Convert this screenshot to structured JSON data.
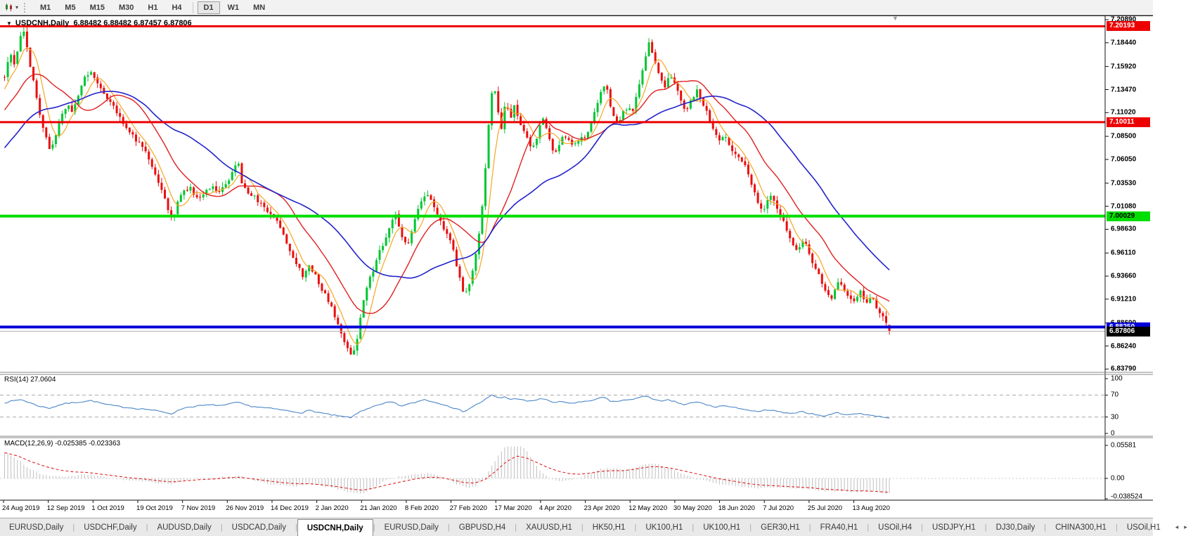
{
  "toolbar": {
    "chart_type_icon": "candlestick-chart-icon",
    "dropdown_icon": "chevron-down-icon",
    "timeframe_groups": [
      [
        "M1",
        "M5",
        "M15",
        "M30",
        "H1",
        "H4"
      ],
      [
        "D1",
        "W1",
        "MN"
      ]
    ],
    "active_timeframe": "D1"
  },
  "chart": {
    "collapse_icon": "collapse-triangle-icon",
    "title": "USDCNH,Daily",
    "ohlc_text": "6.88482 6.88482 6.87457 6.87806"
  },
  "rsi": {
    "label": "RSI(14)",
    "value": "27.0604"
  },
  "macd": {
    "label": "MACD(12,26,9)",
    "macd_value": "-0.025385",
    "signal_value": "-0.023363"
  },
  "tabs": {
    "scroll_left_icon": "◂",
    "scroll_right_icon": "▸",
    "items": [
      {
        "label": "EURUSD,Daily",
        "active": false
      },
      {
        "label": "USDCHF,Daily",
        "active": false
      },
      {
        "label": "AUDUSD,Daily",
        "active": false
      },
      {
        "label": "USDCAD,Daily",
        "active": false
      },
      {
        "label": "USDCNH,Daily",
        "active": true
      },
      {
        "label": "EURUSD,Daily",
        "active": false
      },
      {
        "label": "GBPUSD,H4",
        "active": false
      },
      {
        "label": "XAUUSD,H1",
        "active": false
      },
      {
        "label": "HK50,H1",
        "active": false
      },
      {
        "label": "UK100,H1",
        "active": false
      },
      {
        "label": "UK100,H1",
        "active": false
      },
      {
        "label": "GER30,H1",
        "active": false
      },
      {
        "label": "FRA40,H1",
        "active": false
      },
      {
        "label": "USOil,H4",
        "active": false
      },
      {
        "label": "USDJPY,H1",
        "active": false
      },
      {
        "label": "DJ30,Daily",
        "active": false
      },
      {
        "label": "CHINA300,H1",
        "active": false
      },
      {
        "label": "USOil,H1",
        "active": false
      }
    ]
  },
  "colors": {
    "bull": "#00c632",
    "bear": "#ea0e0e",
    "ma_fast": "#f5a623",
    "ma_mid": "#e02020",
    "ma_slow": "#2323cc",
    "resistance": "#ed0000",
    "support_green": "#00dd00",
    "support_blue": "#0000d8",
    "current_line": "#b3b3b3",
    "current_badge": "#000000",
    "rsi_line": "#4a86c8",
    "macd_hist": "#bfbfbf",
    "macd_signal": "#e02020"
  },
  "chart_data": {
    "type": "candlestick",
    "symbol": "USDCNH",
    "timeframe": "Daily",
    "last_candle": {
      "open": 6.88482,
      "high": 6.88482,
      "low": 6.87457,
      "close": 6.87806
    },
    "y_ticks": [
      "7.20890",
      "7.18440",
      "7.15920",
      "7.13470",
      "7.11020",
      "7.08500",
      "7.06050",
      "7.03530",
      "7.01080",
      "6.98630",
      "6.96110",
      "6.93660",
      "6.91210",
      "6.88690",
      "6.86240",
      "6.83790"
    ],
    "x_labels": [
      "24 Aug 2019",
      "12 Sep 2019",
      "1 Oct 2019",
      "19 Oct 2019",
      "7 Nov 2019",
      "26 Nov 2019",
      "14 Dec 2019",
      "2 Jan 2020",
      "21 Jan 2020",
      "8 Feb 2020",
      "27 Feb 2020",
      "17 Mar 2020",
      "4 Apr 2020",
      "23 Apr 2020",
      "12 May 2020",
      "30 May 2020",
      "18 Jun 2020",
      "7 Jul 2020",
      "25 Jul 2020",
      "13 Aug 2020"
    ],
    "levels": [
      {
        "value": 7.20193,
        "label": "7.20193",
        "role": "resistance",
        "color": "resistance",
        "text": "#ffffff",
        "width": 3
      },
      {
        "value": 7.10011,
        "label": "7.10011",
        "role": "resistance",
        "color": "resistance",
        "text": "#ffffff",
        "width": 3
      },
      {
        "value": 7.00029,
        "label": "7.00029",
        "role": "support",
        "color": "support_green",
        "text": "#000000",
        "width": 4
      },
      {
        "value": 6.8825,
        "label": "6.88250",
        "role": "support",
        "color": "support_blue",
        "text": "#ffffff",
        "width": 4
      },
      {
        "value": 6.87806,
        "label": "6.87806",
        "role": "current-price",
        "color": "current_badge",
        "text": "#ffffff",
        "width": 1
      }
    ],
    "price_path": [
      [
        5,
        7.148
      ],
      [
        12,
        7.175
      ],
      [
        20,
        7.16
      ],
      [
        28,
        7.192
      ],
      [
        34,
        7.196
      ],
      [
        40,
        7.165
      ],
      [
        48,
        7.138
      ],
      [
        55,
        7.108
      ],
      [
        62,
        7.09
      ],
      [
        70,
        7.068
      ],
      [
        78,
        7.088
      ],
      [
        86,
        7.106
      ],
      [
        95,
        7.12
      ],
      [
        102,
        7.108
      ],
      [
        112,
        7.135
      ],
      [
        120,
        7.148
      ],
      [
        130,
        7.152
      ],
      [
        138,
        7.14
      ],
      [
        148,
        7.128
      ],
      [
        158,
        7.12
      ],
      [
        166,
        7.108
      ],
      [
        175,
        7.098
      ],
      [
        185,
        7.088
      ],
      [
        195,
        7.078
      ],
      [
        205,
        7.072
      ],
      [
        215,
        7.052
      ],
      [
        228,
        7.03
      ],
      [
        238,
        7.005
      ],
      [
        244,
        6.996
      ],
      [
        252,
        7.018
      ],
      [
        260,
        7.028
      ],
      [
        270,
        7.03
      ],
      [
        280,
        7.018
      ],
      [
        290,
        7.026
      ],
      [
        300,
        7.034
      ],
      [
        310,
        7.026
      ],
      [
        320,
        7.034
      ],
      [
        330,
        7.048
      ],
      [
        336,
        7.062
      ],
      [
        342,
        7.036
      ],
      [
        352,
        7.026
      ],
      [
        362,
        7.02
      ],
      [
        372,
        7.01
      ],
      [
        382,
        7.002
      ],
      [
        392,
        6.996
      ],
      [
        402,
        6.98
      ],
      [
        412,
        6.962
      ],
      [
        422,
        6.948
      ],
      [
        430,
        6.936
      ],
      [
        438,
        6.946
      ],
      [
        446,
        6.94
      ],
      [
        455,
        6.924
      ],
      [
        465,
        6.912
      ],
      [
        475,
        6.894
      ],
      [
        485,
        6.872
      ],
      [
        494,
        6.856
      ],
      [
        500,
        6.85
      ],
      [
        506,
        6.868
      ],
      [
        512,
        6.896
      ],
      [
        518,
        6.922
      ],
      [
        526,
        6.936
      ],
      [
        536,
        6.958
      ],
      [
        546,
        6.976
      ],
      [
        556,
        6.996
      ],
      [
        562,
        7.004
      ],
      [
        570,
        6.978
      ],
      [
        578,
        6.968
      ],
      [
        586,
        6.99
      ],
      [
        596,
        7.012
      ],
      [
        604,
        7.026
      ],
      [
        612,
        7.016
      ],
      [
        622,
        6.998
      ],
      [
        632,
        6.985
      ],
      [
        642,
        6.97
      ],
      [
        650,
        6.942
      ],
      [
        658,
        6.916
      ],
      [
        666,
        6.928
      ],
      [
        674,
        6.952
      ],
      [
        682,
        6.99
      ],
      [
        688,
        7.04
      ],
      [
        694,
        7.1
      ],
      [
        700,
        7.148
      ],
      [
        706,
        7.118
      ],
      [
        712,
        7.092
      ],
      [
        718,
        7.124
      ],
      [
        724,
        7.102
      ],
      [
        730,
        7.116
      ],
      [
        738,
        7.098
      ],
      [
        746,
        7.088
      ],
      [
        754,
        7.072
      ],
      [
        762,
        7.084
      ],
      [
        770,
        7.106
      ],
      [
        778,
        7.088
      ],
      [
        786,
        7.066
      ],
      [
        794,
        7.078
      ],
      [
        802,
        7.086
      ],
      [
        812,
        7.074
      ],
      [
        822,
        7.08
      ],
      [
        832,
        7.086
      ],
      [
        842,
        7.104
      ],
      [
        852,
        7.13
      ],
      [
        860,
        7.142
      ],
      [
        868,
        7.112
      ],
      [
        878,
        7.096
      ],
      [
        888,
        7.116
      ],
      [
        898,
        7.112
      ],
      [
        906,
        7.134
      ],
      [
        914,
        7.158
      ],
      [
        921,
        7.188
      ],
      [
        928,
        7.17
      ],
      [
        936,
        7.15
      ],
      [
        944,
        7.136
      ],
      [
        951,
        7.15
      ],
      [
        958,
        7.14
      ],
      [
        966,
        7.126
      ],
      [
        974,
        7.112
      ],
      [
        982,
        7.124
      ],
      [
        990,
        7.134
      ],
      [
        998,
        7.12
      ],
      [
        1006,
        7.106
      ],
      [
        1014,
        7.092
      ],
      [
        1022,
        7.08
      ],
      [
        1030,
        7.088
      ],
      [
        1038,
        7.072
      ],
      [
        1046,
        7.066
      ],
      [
        1054,
        7.06
      ],
      [
        1062,
        7.046
      ],
      [
        1070,
        7.028
      ],
      [
        1078,
        7.012
      ],
      [
        1086,
        7.008
      ],
      [
        1094,
        7.022
      ],
      [
        1102,
        7.012
      ],
      [
        1110,
        6.998
      ],
      [
        1118,
        6.986
      ],
      [
        1126,
        6.972
      ],
      [
        1134,
        6.962
      ],
      [
        1142,
        6.976
      ],
      [
        1150,
        6.958
      ],
      [
        1158,
        6.946
      ],
      [
        1166,
        6.934
      ],
      [
        1174,
        6.916
      ],
      [
        1182,
        6.912
      ],
      [
        1190,
        6.93
      ],
      [
        1198,
        6.924
      ],
      [
        1206,
        6.916
      ],
      [
        1214,
        6.908
      ],
      [
        1222,
        6.92
      ],
      [
        1230,
        6.908
      ],
      [
        1238,
        6.916
      ],
      [
        1246,
        6.902
      ],
      [
        1254,
        6.894
      ],
      [
        1261,
        6.886
      ],
      [
        1265,
        6.878
      ]
    ],
    "rsi_axis": [
      "100",
      "70",
      "30",
      "0"
    ],
    "rsi_guides": [
      70,
      30
    ],
    "rsi_path": [
      [
        5,
        56
      ],
      [
        30,
        62
      ],
      [
        55,
        50
      ],
      [
        70,
        46
      ],
      [
        90,
        54
      ],
      [
        110,
        57
      ],
      [
        130,
        60
      ],
      [
        150,
        53
      ],
      [
        170,
        49
      ],
      [
        190,
        46
      ],
      [
        210,
        44
      ],
      [
        228,
        40
      ],
      [
        244,
        36
      ],
      [
        262,
        47
      ],
      [
        280,
        50
      ],
      [
        300,
        52
      ],
      [
        320,
        51
      ],
      [
        336,
        57
      ],
      [
        355,
        50
      ],
      [
        375,
        47
      ],
      [
        395,
        44
      ],
      [
        415,
        40
      ],
      [
        430,
        38
      ],
      [
        440,
        42
      ],
      [
        455,
        38
      ],
      [
        470,
        34
      ],
      [
        485,
        31
      ],
      [
        500,
        29
      ],
      [
        512,
        40
      ],
      [
        526,
        47
      ],
      [
        540,
        52
      ],
      [
        556,
        58
      ],
      [
        570,
        50
      ],
      [
        586,
        55
      ],
      [
        604,
        62
      ],
      [
        620,
        56
      ],
      [
        635,
        52
      ],
      [
        650,
        44
      ],
      [
        660,
        40
      ],
      [
        674,
        50
      ],
      [
        688,
        60
      ],
      [
        700,
        70
      ],
      [
        710,
        64
      ],
      [
        718,
        67
      ],
      [
        726,
        62
      ],
      [
        738,
        64
      ],
      [
        750,
        58
      ],
      [
        762,
        61
      ],
      [
        775,
        64
      ],
      [
        786,
        56
      ],
      [
        800,
        58
      ],
      [
        812,
        55
      ],
      [
        824,
        57
      ],
      [
        836,
        58
      ],
      [
        852,
        64
      ],
      [
        860,
        66
      ],
      [
        870,
        58
      ],
      [
        882,
        59
      ],
      [
        894,
        62
      ],
      [
        906,
        64
      ],
      [
        921,
        69
      ],
      [
        930,
        62
      ],
      [
        940,
        58
      ],
      [
        951,
        61
      ],
      [
        962,
        57
      ],
      [
        974,
        52
      ],
      [
        984,
        56
      ],
      [
        994,
        57
      ],
      [
        1006,
        52
      ],
      [
        1016,
        48
      ],
      [
        1030,
        51
      ],
      [
        1042,
        47
      ],
      [
        1054,
        46
      ],
      [
        1066,
        42
      ],
      [
        1078,
        39
      ],
      [
        1090,
        43
      ],
      [
        1102,
        41
      ],
      [
        1114,
        38
      ],
      [
        1126,
        35
      ],
      [
        1138,
        41
      ],
      [
        1150,
        37
      ],
      [
        1162,
        34
      ],
      [
        1174,
        31
      ],
      [
        1186,
        38
      ],
      [
        1198,
        36
      ],
      [
        1210,
        34
      ],
      [
        1222,
        37
      ],
      [
        1234,
        34
      ],
      [
        1246,
        32
      ],
      [
        1256,
        30
      ],
      [
        1265,
        27
      ]
    ],
    "macd_axis": [
      "0.05581",
      "0.00",
      "-0.038524"
    ],
    "macd_signal_path": [
      [
        5,
        0.044
      ],
      [
        25,
        0.038
      ],
      [
        45,
        0.028
      ],
      [
        65,
        0.02
      ],
      [
        85,
        0.014
      ],
      [
        105,
        0.011
      ],
      [
        125,
        0.01
      ],
      [
        145,
        0.007
      ],
      [
        165,
        0.004
      ],
      [
        185,
        0.001
      ],
      [
        205,
        -0.001
      ],
      [
        225,
        -0.004
      ],
      [
        245,
        -0.006
      ],
      [
        265,
        -0.004
      ],
      [
        285,
        -0.002
      ],
      [
        305,
        -0.001
      ],
      [
        325,
        0.001
      ],
      [
        340,
        0.002
      ],
      [
        360,
        -0.001
      ],
      [
        380,
        -0.004
      ],
      [
        400,
        -0.007
      ],
      [
        420,
        -0.009
      ],
      [
        440,
        -0.009
      ],
      [
        460,
        -0.011
      ],
      [
        480,
        -0.014
      ],
      [
        500,
        -0.018
      ],
      [
        515,
        -0.02
      ],
      [
        530,
        -0.017
      ],
      [
        550,
        -0.011
      ],
      [
        570,
        -0.006
      ],
      [
        590,
        -0.001
      ],
      [
        610,
        0.002
      ],
      [
        630,
        0.001
      ],
      [
        645,
        -0.003
      ],
      [
        660,
        -0.007
      ],
      [
        675,
        -0.008
      ],
      [
        690,
        -0.002
      ],
      [
        705,
        0.012
      ],
      [
        720,
        0.028
      ],
      [
        735,
        0.038
      ],
      [
        750,
        0.034
      ],
      [
        765,
        0.026
      ],
      [
        780,
        0.018
      ],
      [
        795,
        0.012
      ],
      [
        810,
        0.008
      ],
      [
        825,
        0.007
      ],
      [
        840,
        0.009
      ],
      [
        855,
        0.012
      ],
      [
        870,
        0.013
      ],
      [
        885,
        0.013
      ],
      [
        900,
        0.015
      ],
      [
        915,
        0.018
      ],
      [
        930,
        0.02
      ],
      [
        945,
        0.019
      ],
      [
        960,
        0.016
      ],
      [
        975,
        0.012
      ],
      [
        990,
        0.008
      ],
      [
        1005,
        0.004
      ],
      [
        1020,
        0.0
      ],
      [
        1035,
        -0.003
      ],
      [
        1050,
        -0.006
      ],
      [
        1065,
        -0.009
      ],
      [
        1080,
        -0.011
      ],
      [
        1095,
        -0.012
      ],
      [
        1110,
        -0.013
      ],
      [
        1125,
        -0.014
      ],
      [
        1140,
        -0.015
      ],
      [
        1155,
        -0.016
      ],
      [
        1170,
        -0.018
      ],
      [
        1185,
        -0.019
      ],
      [
        1200,
        -0.02
      ],
      [
        1215,
        -0.021
      ],
      [
        1230,
        -0.021
      ],
      [
        1245,
        -0.022
      ],
      [
        1258,
        -0.023
      ],
      [
        1265,
        -0.0234
      ]
    ]
  }
}
